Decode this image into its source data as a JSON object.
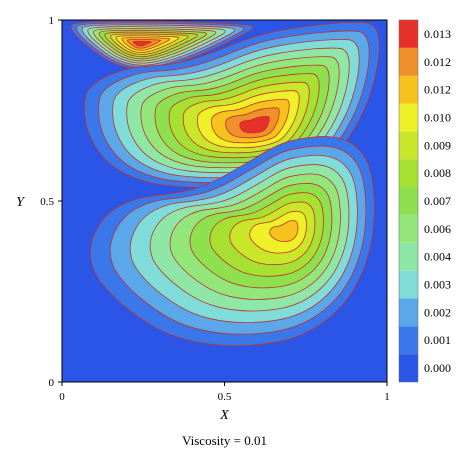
{
  "chart_data": {
    "type": "heatmap",
    "subtype": "filled-contour",
    "title": "",
    "xlabel": "X",
    "ylabel": "Y",
    "xlim": [
      0,
      1
    ],
    "ylim": [
      0,
      1
    ],
    "x_ticks": [
      {
        "value": 0,
        "label": "0"
      },
      {
        "value": 0.5,
        "label": "0.5"
      },
      {
        "value": 1,
        "label": "1"
      }
    ],
    "y_ticks": [
      {
        "value": 0,
        "label": "0"
      },
      {
        "value": 0.5,
        "label": "0.5"
      },
      {
        "value": 1,
        "label": "1"
      }
    ],
    "colorbar": {
      "levels": [
        {
          "label": "0.000",
          "color": "#2b55e6"
        },
        {
          "label": "0.001",
          "color": "#3a77ea"
        },
        {
          "label": "0.002",
          "color": "#5aa7ea"
        },
        {
          "label": "0.003",
          "color": "#7fdcd8"
        },
        {
          "label": "0.004",
          "color": "#8ee7a6"
        },
        {
          "label": "0.006",
          "color": "#92e67a"
        },
        {
          "label": "0.007",
          "color": "#8fe04e"
        },
        {
          "label": "0.008",
          "color": "#a5e033"
        },
        {
          "label": "0.009",
          "color": "#c9e62a"
        },
        {
          "label": "0.010",
          "color": "#eef028"
        },
        {
          "label": "0.012",
          "color": "#f6c21e"
        },
        {
          "label": "0.012",
          "color": "#f0902a"
        },
        {
          "label": "0.013",
          "color": "#e8302a"
        }
      ]
    },
    "vortices": [
      {
        "name": "top",
        "center": [
          0.24,
          0.935
        ],
        "peak_level": 12
      },
      {
        "name": "middle",
        "center": [
          0.6,
          0.705
        ],
        "peak_level": 12
      },
      {
        "name": "lower",
        "center": [
          0.7,
          0.42
        ],
        "peak_level": 10
      }
    ],
    "contour_line_color": "#c0302a",
    "caption": "Viscosity = 0.01"
  }
}
